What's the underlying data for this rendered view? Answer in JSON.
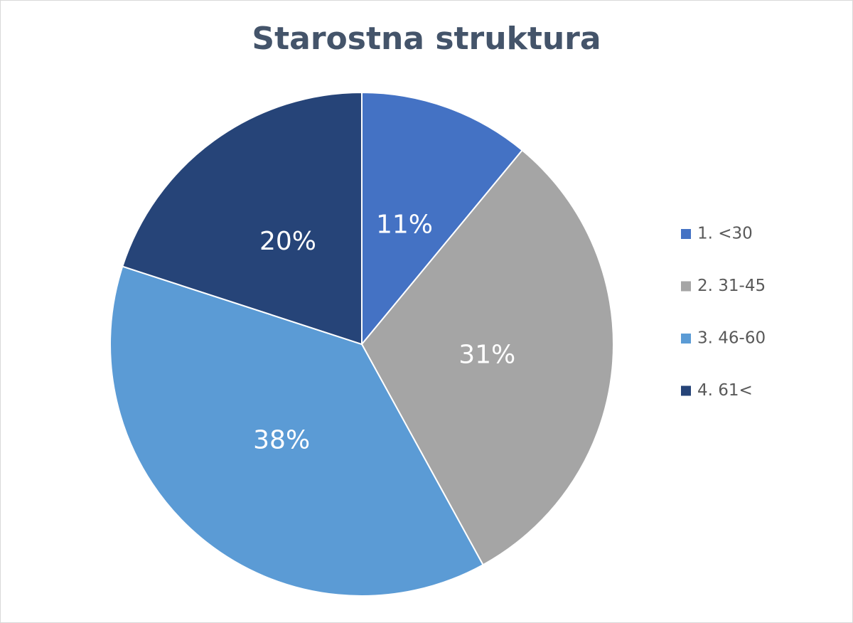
{
  "chart_data": {
    "type": "pie",
    "title": "Starostna struktura",
    "categories": [
      "1. <30",
      "2. 31-45",
      "3. 46-60",
      "4. 61<"
    ],
    "values": [
      11,
      31,
      38,
      20
    ],
    "value_labels": [
      "11%",
      "31%",
      "38%",
      "20%"
    ],
    "colors": [
      "#4472c4",
      "#a5a5a5",
      "#5b9bd5",
      "#264478"
    ],
    "legend": "right"
  }
}
